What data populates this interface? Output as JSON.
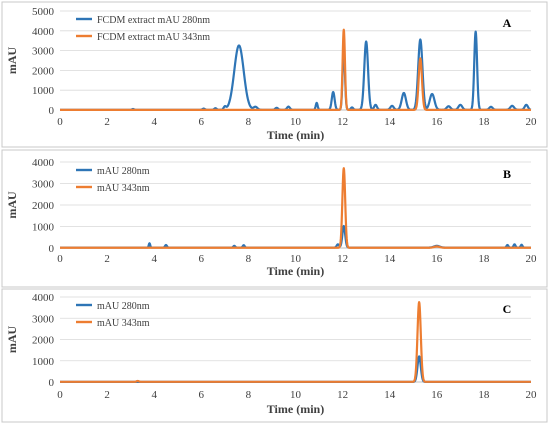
{
  "chart_data": [
    {
      "type": "line",
      "panel_label": "A",
      "xlabel": "Time (min)",
      "ylabel": "mAU",
      "xlim": [
        0,
        20
      ],
      "ylim": [
        0,
        5000
      ],
      "x_ticks": [
        "0",
        "2",
        "4",
        "6",
        "8",
        "10",
        "12",
        "14",
        "16",
        "18",
        "20"
      ],
      "y_ticks": [
        "0",
        "1000",
        "2000",
        "3000",
        "4000",
        "5000"
      ],
      "grid": "horizontal",
      "legend_position": "top-left",
      "series": [
        {
          "name": "FCDM extract mAU 280nm",
          "color": "#2e75b6",
          "baseline": 10,
          "peaks": [
            {
              "x": 3.1,
              "y": 40,
              "w": 0.04
            },
            {
              "x": 6.1,
              "y": 60,
              "w": 0.05
            },
            {
              "x": 6.6,
              "y": 80,
              "w": 0.05
            },
            {
              "x": 7.0,
              "y": 150,
              "w": 0.05
            },
            {
              "x": 7.6,
              "y": 3250,
              "w": 0.2
            },
            {
              "x": 8.3,
              "y": 150,
              "w": 0.08
            },
            {
              "x": 9.2,
              "y": 100,
              "w": 0.06
            },
            {
              "x": 9.7,
              "y": 160,
              "w": 0.06
            },
            {
              "x": 10.9,
              "y": 350,
              "w": 0.04
            },
            {
              "x": 11.6,
              "y": 900,
              "w": 0.06
            },
            {
              "x": 12.05,
              "y": 3100,
              "w": 0.05
            },
            {
              "x": 12.4,
              "y": 120,
              "w": 0.05
            },
            {
              "x": 13.0,
              "y": 3450,
              "w": 0.08
            },
            {
              "x": 13.4,
              "y": 250,
              "w": 0.06
            },
            {
              "x": 14.1,
              "y": 200,
              "w": 0.07
            },
            {
              "x": 14.6,
              "y": 850,
              "w": 0.09
            },
            {
              "x": 15.3,
              "y": 3550,
              "w": 0.09
            },
            {
              "x": 15.8,
              "y": 800,
              "w": 0.1
            },
            {
              "x": 16.5,
              "y": 180,
              "w": 0.08
            },
            {
              "x": 17.0,
              "y": 250,
              "w": 0.08
            },
            {
              "x": 17.65,
              "y": 3950,
              "w": 0.06
            },
            {
              "x": 18.3,
              "y": 150,
              "w": 0.07
            },
            {
              "x": 19.2,
              "y": 200,
              "w": 0.08
            },
            {
              "x": 19.8,
              "y": 250,
              "w": 0.07
            }
          ]
        },
        {
          "name": "FCDM extract  mAU 343nm",
          "color": "#ed7d31",
          "baseline": 5,
          "peaks": [
            {
              "x": 12.05,
              "y": 4050,
              "w": 0.05
            },
            {
              "x": 15.3,
              "y": 2600,
              "w": 0.07
            }
          ]
        }
      ]
    },
    {
      "type": "line",
      "panel_label": "B",
      "xlabel": "Time (min)",
      "ylabel": "mAU",
      "xlim": [
        0,
        20
      ],
      "ylim": [
        0,
        4000
      ],
      "x_ticks": [
        "0",
        "2",
        "4",
        "6",
        "8",
        "10",
        "12",
        "14",
        "16",
        "18",
        "20"
      ],
      "y_ticks": [
        "0",
        "1000",
        "2000",
        "3000",
        "4000"
      ],
      "grid": "horizontal",
      "legend_position": "top-left",
      "series": [
        {
          "name": "mAU 280nm",
          "color": "#2e75b6",
          "baseline": 20,
          "peaks": [
            {
              "x": 3.8,
              "y": 200,
              "w": 0.03
            },
            {
              "x": 4.5,
              "y": 120,
              "w": 0.04
            },
            {
              "x": 7.4,
              "y": 80,
              "w": 0.04
            },
            {
              "x": 7.8,
              "y": 110,
              "w": 0.04
            },
            {
              "x": 11.8,
              "y": 150,
              "w": 0.05
            },
            {
              "x": 12.05,
              "y": 1000,
              "w": 0.06
            },
            {
              "x": 16.0,
              "y": 80,
              "w": 0.12
            },
            {
              "x": 19.0,
              "y": 120,
              "w": 0.04
            },
            {
              "x": 19.3,
              "y": 150,
              "w": 0.04
            },
            {
              "x": 19.6,
              "y": 130,
              "w": 0.04
            }
          ]
        },
        {
          "name": "mAU 343nm",
          "color": "#ed7d31",
          "baseline": 10,
          "peaks": [
            {
              "x": 12.05,
              "y": 3700,
              "w": 0.06
            },
            {
              "x": 16.0,
              "y": 60,
              "w": 0.12
            }
          ]
        }
      ]
    },
    {
      "type": "line",
      "panel_label": "C",
      "xlabel": "Time (min)",
      "ylabel": "mAU",
      "xlim": [
        0,
        20
      ],
      "ylim": [
        0,
        4000
      ],
      "x_ticks": [
        "0",
        "2",
        "4",
        "6",
        "8",
        "10",
        "12",
        "14",
        "16",
        "18",
        "20"
      ],
      "y_ticks": [
        "0",
        "1000",
        "2000",
        "3000",
        "4000"
      ],
      "grid": "horizontal",
      "legend_position": "top-left",
      "series": [
        {
          "name": "mAU 280nm",
          "color": "#2e75b6",
          "baseline": 5,
          "peaks": [
            {
              "x": 15.25,
              "y": 1200,
              "w": 0.07
            }
          ]
        },
        {
          "name": "mAU 343nm",
          "color": "#ed7d31",
          "baseline": 8,
          "peaks": [
            {
              "x": 3.3,
              "y": 40,
              "w": 0.05
            },
            {
              "x": 15.25,
              "y": 3750,
              "w": 0.07
            }
          ]
        }
      ]
    }
  ]
}
